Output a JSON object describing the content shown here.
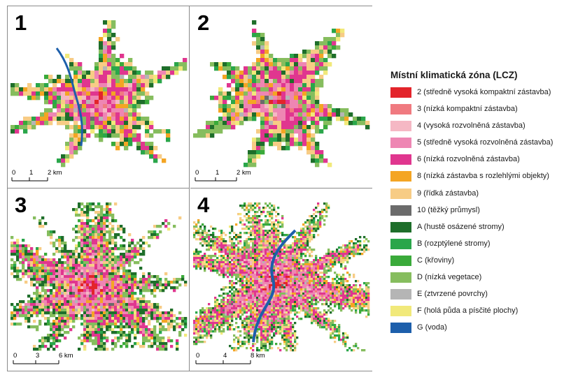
{
  "panels": [
    {
      "id": "1",
      "scale_ticks": [
        "0",
        "1",
        "2 km"
      ]
    },
    {
      "id": "2",
      "scale_ticks": [
        "0",
        "1",
        "2 km"
      ]
    },
    {
      "id": "3",
      "scale_ticks": [
        "0",
        "3",
        "6 km"
      ]
    },
    {
      "id": "4",
      "scale_ticks": [
        "0",
        "4",
        "8 km"
      ]
    }
  ],
  "legend": {
    "title": "Místní klimatická zóna (LCZ)",
    "items": [
      {
        "code": "2",
        "label": "2 (středně vysoká kompaktní zástavba)",
        "color": "#e3242b"
      },
      {
        "code": "3",
        "label": "3 (nízká kompaktní zástavba)",
        "color": "#f07a80"
      },
      {
        "code": "4",
        "label": "4 (vysoká rozvolněná zástavba)",
        "color": "#f5b8c4"
      },
      {
        "code": "5",
        "label": "5 (středně vysoká rozvolněná zástavba)",
        "color": "#ee86b3"
      },
      {
        "code": "6",
        "label": "6 (nízká rozvolněná zástavba)",
        "color": "#e0368f"
      },
      {
        "code": "8",
        "label": "8 (nízká zástavba s rozlehlými objekty)",
        "color": "#f4a523"
      },
      {
        "code": "9",
        "label": "9 (řídká zástavba)",
        "color": "#f7cc85"
      },
      {
        "code": "10",
        "label": "10 (těžký průmysl)",
        "color": "#6b6b6b"
      },
      {
        "code": "A",
        "label": "A (hustě osázené stromy)",
        "color": "#1e6e2a"
      },
      {
        "code": "B",
        "label": "B (rozptýlené stromy)",
        "color": "#2aa64a"
      },
      {
        "code": "C",
        "label": "C (křoviny)",
        "color": "#3aaa3a"
      },
      {
        "code": "D",
        "label": "D (nízká vegetace)",
        "color": "#86bd5e"
      },
      {
        "code": "E",
        "label": "E (ztvrzené povrchy)",
        "color": "#b5b5b5"
      },
      {
        "code": "F",
        "label": "F (holá půda a písčité plochy)",
        "color": "#f1e97a"
      },
      {
        "code": "G",
        "label": "G (voda)",
        "color": "#1d5fab"
      }
    ]
  }
}
